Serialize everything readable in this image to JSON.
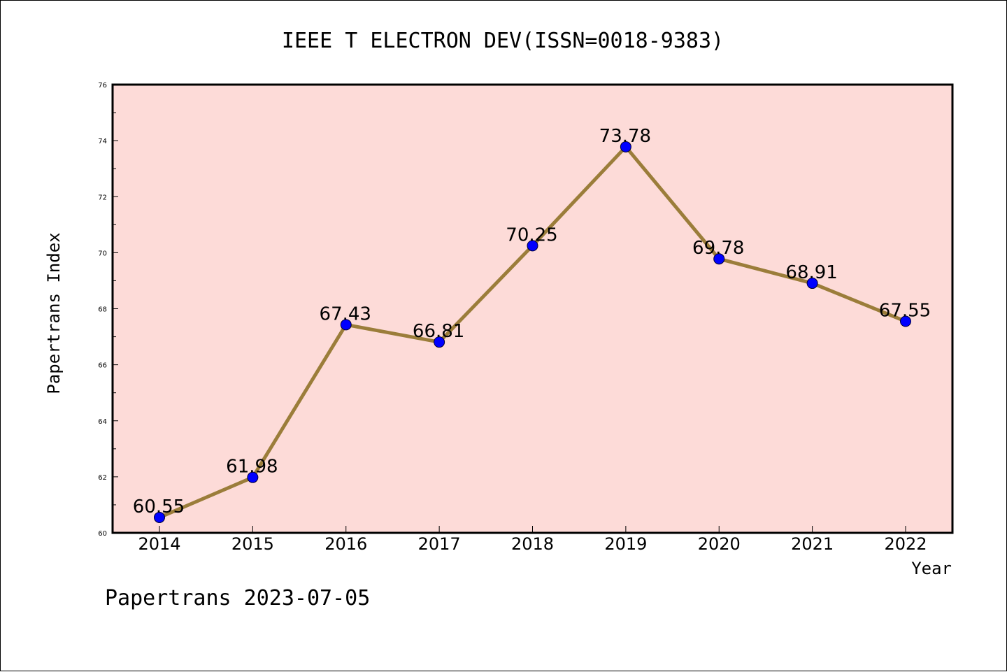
{
  "chart_data": {
    "type": "line",
    "title": "IEEE T ELECTRON DEV(ISSN=0018-9383)",
    "xlabel": "Year",
    "ylabel": "Papertrans Index",
    "categories": [
      "2014",
      "2015",
      "2016",
      "2017",
      "2018",
      "2019",
      "2020",
      "2021",
      "2022"
    ],
    "values": [
      60.55,
      61.98,
      67.43,
      66.81,
      70.25,
      73.78,
      69.78,
      68.91,
      67.55
    ],
    "data_labels": [
      "60.55",
      "61.98",
      "67.43",
      "66.81",
      "70.25",
      "73.78",
      "69.78",
      "68.91",
      "67.55"
    ],
    "ylim": [
      60,
      76
    ],
    "yticks": [
      "60",
      "62",
      "64",
      "66",
      "68",
      "70",
      "72",
      "74",
      "76"
    ],
    "grid": false,
    "footer": "Papertrans 2023-07-05",
    "colors": {
      "plot_background": "#fddbd8",
      "line": "#9b7d3a",
      "marker": "#0000ff",
      "axis": "#000000"
    }
  }
}
